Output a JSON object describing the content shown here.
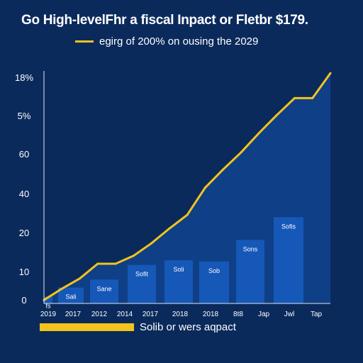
{
  "chart_data": {
    "type": "bar",
    "title": "Go High-levelFhr a fiscal Inpact or Fletbr $179.",
    "subtitle": "",
    "xlabel": "",
    "ylabel": "",
    "y_tick_labels": [
      "0",
      "10",
      "20",
      "40",
      "60",
      "5%",
      "18%"
    ],
    "x_tick_labels": [
      "2019",
      "2017",
      "2012",
      "2014",
      "2017",
      "2018",
      "2018",
      "8t8",
      "Jap",
      "Jwl",
      "Tap"
    ],
    "ylim": [
      0,
      18
    ],
    "grid": false,
    "legend_position": "top-left",
    "series": [
      {
        "name": "Solib or wers aqpact",
        "kind": "bar",
        "color": "#1658b8",
        "bar_labels": [
          "fs",
          "Sali",
          "Sane",
          "Sofit",
          "Soli",
          "Sob",
          "Sons",
          "Sofis"
        ],
        "values": [
          0.6,
          1.4,
          2.1,
          3.4,
          3.8,
          3.7,
          5.6,
          7.6
        ]
      },
      {
        "name": "egirg of 200% on ousing the 2029",
        "kind": "line",
        "color": "#f2c41c",
        "values": [
          0.3,
          1.3,
          2.2,
          3.5,
          3.5,
          4.2,
          5.3,
          6.6,
          7.8,
          10.2,
          11.8,
          13.3,
          15.0,
          16.6,
          18.1,
          18.1,
          20.3
        ]
      }
    ]
  }
}
